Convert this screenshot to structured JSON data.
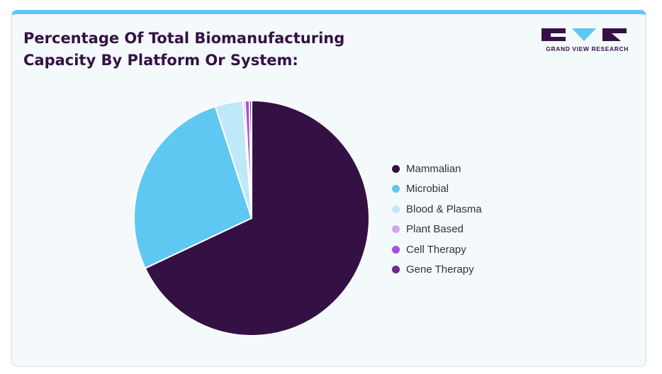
{
  "header": {
    "title": "Percentage Of Total Biomanufacturing Capacity By Platform Or System:",
    "logo_text": "GRAND VIEW RESEARCH"
  },
  "chart_data": {
    "type": "pie",
    "categories": [
      "Mammalian",
      "Microbial",
      "Blood & Plasma",
      "Plant Based",
      "Cell Therapy",
      "Gene Therapy"
    ],
    "values": [
      68,
      27,
      3.8,
      0.3,
      0.6,
      0.3
    ],
    "colors": [
      "#341145",
      "#5ec8f2",
      "#bfe8f8",
      "#d4a6e8",
      "#a850d6",
      "#6b2a90"
    ],
    "legend_position": "right"
  },
  "logo": {
    "colors": [
      "#341145",
      "#5ec8f2"
    ]
  }
}
